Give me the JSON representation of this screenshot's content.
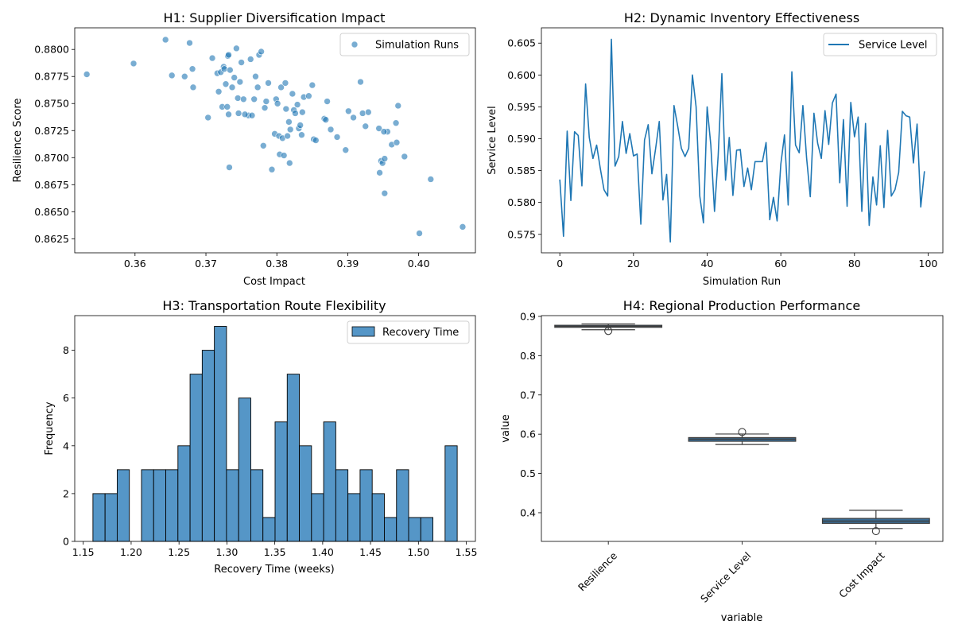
{
  "colors": {
    "scatter": "#1f77b4",
    "line": "#1f77b4",
    "hist_fill": "#5596c7",
    "box_fill": "#3a6e97",
    "box_line": "#3d3d3d",
    "legend_border": "#cccccc"
  },
  "chart_data": [
    {
      "type": "scatter",
      "title": "H1: Supplier Diversification Impact",
      "xlabel": "Cost Impact",
      "ylabel": "Resilience Score",
      "xlim": [
        0.3515,
        0.408
      ],
      "ylim": [
        0.8612,
        0.882
      ],
      "xticks": [
        0.36,
        0.37,
        0.38,
        0.39,
        0.4
      ],
      "xtick_labels": [
        "0.36",
        "0.37",
        "0.38",
        "0.39",
        "0.40"
      ],
      "yticks": [
        0.8625,
        0.865,
        0.8675,
        0.87,
        0.8725,
        0.875,
        0.8775,
        0.88
      ],
      "ytick_labels": [
        "0.8625",
        "0.8650",
        "0.8675",
        "0.8700",
        "0.8725",
        "0.8750",
        "0.8775",
        "0.8800"
      ],
      "legend": {
        "position": "upper right",
        "entries": [
          "Simulation Runs"
        ]
      },
      "series": [
        {
          "name": "Simulation Runs",
          "x": [
            0.3532,
            0.3598,
            0.3643,
            0.3652,
            0.367,
            0.3677,
            0.3682,
            0.3681,
            0.3703,
            0.3709,
            0.3716,
            0.3718,
            0.3721,
            0.3723,
            0.3725,
            0.3726,
            0.3728,
            0.373,
            0.3731,
            0.3732,
            0.3733,
            0.3734,
            0.3737,
            0.374,
            0.3743,
            0.3745,
            0.3746,
            0.3748,
            0.375,
            0.3753,
            0.376,
            0.3763,
            0.3765,
            0.3768,
            0.377,
            0.3773,
            0.3775,
            0.3778,
            0.3781,
            0.3783,
            0.3785,
            0.3788,
            0.3793,
            0.3797,
            0.3799,
            0.3801,
            0.3803,
            0.3804,
            0.3806,
            0.3808,
            0.381,
            0.3812,
            0.3813,
            0.3815,
            0.3817,
            0.3819,
            0.3822,
            0.3824,
            0.3826,
            0.3829,
            0.3831,
            0.3833,
            0.3835,
            0.3836,
            0.3838,
            0.3845,
            0.385,
            0.3852,
            0.3855,
            0.3867,
            0.3869,
            0.3871,
            0.3876,
            0.3885,
            0.3897,
            0.3901,
            0.3908,
            0.3918,
            0.3921,
            0.3925,
            0.3929,
            0.3944,
            0.3945,
            0.3947,
            0.3949,
            0.3952,
            0.3956,
            0.3962,
            0.3968,
            0.3969,
            0.3971,
            0.398,
            0.3952,
            0.4001,
            0.4017,
            0.4062,
            0.3951,
            0.3818,
            0.3732,
            0.3755
          ],
          "y": [
            0.8777,
            0.8787,
            0.8809,
            0.8776,
            0.8775,
            0.8806,
            0.8765,
            0.8782,
            0.8737,
            0.8792,
            0.8778,
            0.8761,
            0.8779,
            0.8747,
            0.8784,
            0.8782,
            0.8768,
            0.8747,
            0.8794,
            0.8795,
            0.8691,
            0.8781,
            0.8765,
            0.8774,
            0.8801,
            0.8755,
            0.8741,
            0.877,
            0.8788,
            0.8754,
            0.8739,
            0.8791,
            0.8739,
            0.8754,
            0.8775,
            0.8765,
            0.8795,
            0.8798,
            0.8711,
            0.8746,
            0.8752,
            0.8769,
            0.8689,
            0.8722,
            0.8754,
            0.875,
            0.872,
            0.8703,
            0.8765,
            0.8718,
            0.8702,
            0.8769,
            0.8745,
            0.872,
            0.8733,
            0.8726,
            0.8759,
            0.8744,
            0.8741,
            0.8749,
            0.8727,
            0.873,
            0.8721,
            0.8742,
            0.8756,
            0.8757,
            0.8767,
            0.8717,
            0.8716,
            0.8736,
            0.8735,
            0.8752,
            0.8726,
            0.8719,
            0.8707,
            0.8743,
            0.8737,
            0.877,
            0.8741,
            0.8729,
            0.8742,
            0.8727,
            0.8686,
            0.8697,
            0.8695,
            0.8699,
            0.8724,
            0.8712,
            0.8732,
            0.8714,
            0.8748,
            0.8701,
            0.8667,
            0.863,
            0.868,
            0.8636,
            0.8724,
            0.8695,
            0.874,
            0.874
          ]
        }
      ]
    },
    {
      "type": "line",
      "title": "H2: Dynamic Inventory Effectiveness",
      "xlabel": "Simulation Run",
      "ylabel": "Service Level",
      "xlim": [
        -5,
        104
      ],
      "ylim": [
        0.5721,
        0.6074
      ],
      "xticks": [
        0,
        20,
        40,
        60,
        80,
        100
      ],
      "xtick_labels": [
        "0",
        "20",
        "40",
        "60",
        "80",
        "100"
      ],
      "yticks": [
        0.575,
        0.58,
        0.585,
        0.59,
        0.595,
        0.6,
        0.605
      ],
      "ytick_labels": [
        "0.575",
        "0.580",
        "0.585",
        "0.590",
        "0.595",
        "0.600",
        "0.605"
      ],
      "legend": {
        "position": "upper right",
        "entries": [
          "Service Level"
        ]
      },
      "series": [
        {
          "name": "Service Level",
          "x": [
            0,
            1,
            2,
            3,
            4,
            5,
            6,
            7,
            8,
            9,
            10,
            11,
            12,
            13,
            14,
            15,
            16,
            17,
            18,
            19,
            20,
            21,
            22,
            23,
            24,
            25,
            26,
            27,
            28,
            29,
            30,
            31,
            32,
            33,
            34,
            35,
            36,
            37,
            38,
            39,
            40,
            41,
            42,
            43,
            44,
            45,
            46,
            47,
            48,
            49,
            50,
            51,
            52,
            53,
            54,
            55,
            56,
            57,
            58,
            59,
            60,
            61,
            62,
            63,
            64,
            65,
            66,
            67,
            68,
            69,
            70,
            71,
            72,
            73,
            74,
            75,
            76,
            77,
            78,
            79,
            80,
            81,
            82,
            83,
            84,
            85,
            86,
            87,
            88,
            89,
            90,
            91,
            92,
            93,
            94,
            95,
            96,
            97,
            98,
            99
          ],
          "values": [
            0.5836,
            0.5747,
            0.5912,
            0.5803,
            0.5911,
            0.5905,
            0.5826,
            0.5986,
            0.5902,
            0.5869,
            0.589,
            0.5853,
            0.582,
            0.581,
            0.6056,
            0.5857,
            0.5872,
            0.5927,
            0.5877,
            0.5908,
            0.5873,
            0.5876,
            0.5766,
            0.5898,
            0.5922,
            0.5845,
            0.5884,
            0.5927,
            0.5804,
            0.5844,
            0.5738,
            0.5952,
            0.592,
            0.5885,
            0.5872,
            0.5885,
            0.6,
            0.595,
            0.581,
            0.5768,
            0.595,
            0.589,
            0.5786,
            0.5874,
            0.6002,
            0.5835,
            0.5902,
            0.5811,
            0.5882,
            0.5883,
            0.5825,
            0.5854,
            0.582,
            0.5864,
            0.5864,
            0.5864,
            0.5894,
            0.5773,
            0.5808,
            0.5771,
            0.586,
            0.5906,
            0.5796,
            0.6005,
            0.589,
            0.5878,
            0.5952,
            0.587,
            0.5809,
            0.594,
            0.5893,
            0.5869,
            0.5944,
            0.5891,
            0.5956,
            0.597,
            0.5831,
            0.593,
            0.5794,
            0.5957,
            0.5903,
            0.5934,
            0.5786,
            0.5924,
            0.5764,
            0.584,
            0.5796,
            0.5889,
            0.5792,
            0.5913,
            0.581,
            0.582,
            0.5847,
            0.5943,
            0.5936,
            0.5934,
            0.5862,
            0.5923,
            0.5793,
            0.5849
          ]
        }
      ]
    },
    {
      "type": "histogram",
      "title": "H3: Transportation Route Flexibility",
      "xlabel": "Recovery Time (weeks)",
      "ylabel": "Frequency",
      "xlim": [
        1.1411,
        1.5595
      ],
      "ylim": [
        0,
        9.45
      ],
      "xticks": [
        1.15,
        1.2,
        1.25,
        1.3,
        1.35,
        1.4,
        1.45,
        1.5,
        1.55
      ],
      "xtick_labels": [
        "1.15",
        "1.20",
        "1.25",
        "1.30",
        "1.35",
        "1.40",
        "1.45",
        "1.50",
        "1.55"
      ],
      "yticks": [
        0,
        2,
        4,
        6,
        8
      ],
      "ytick_labels": [
        "0",
        "2",
        "4",
        "6",
        "8"
      ],
      "legend": {
        "position": "upper right",
        "entries": [
          "Recovery Time"
        ]
      },
      "bin_start": 1.1601,
      "bin_width": 0.01268,
      "counts": [
        2,
        2,
        3,
        0,
        3,
        3,
        3,
        4,
        7,
        8,
        9,
        3,
        6,
        3,
        1,
        5,
        7,
        4,
        2,
        5,
        3,
        2,
        3,
        2,
        1,
        3,
        1,
        1,
        0,
        4
      ]
    },
    {
      "type": "box",
      "title": "H4: Regional Production Performance",
      "xlabel": "variable",
      "ylabel": "value",
      "ylim": [
        0.327,
        0.902
      ],
      "yticks": [
        0.4,
        0.5,
        0.6,
        0.7,
        0.8,
        0.9
      ],
      "ytick_labels": [
        "0.4",
        "0.5",
        "0.6",
        "0.7",
        "0.8",
        "0.9"
      ],
      "categories": [
        "Resilience",
        "Service Level",
        "Cost Impact"
      ],
      "boxes": [
        {
          "whisker_low": 0.866,
          "q1": 0.8722,
          "median": 0.8747,
          "q3": 0.8774,
          "whisker_high": 0.8809,
          "outliers": [
            0.863
          ]
        },
        {
          "whisker_low": 0.5738,
          "q1": 0.582,
          "median": 0.5876,
          "q3": 0.5914,
          "whisker_high": 0.6005,
          "outliers": [
            0.6056
          ]
        },
        {
          "whisker_low": 0.3598,
          "q1": 0.3729,
          "median": 0.3787,
          "q3": 0.3855,
          "whisker_high": 0.4062,
          "outliers": [
            0.3532
          ]
        }
      ]
    }
  ]
}
